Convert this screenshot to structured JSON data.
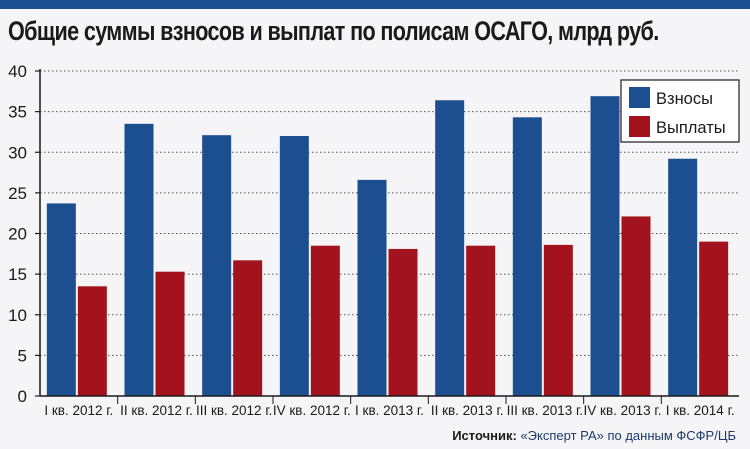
{
  "title": "Общие суммы взносов и выплат по полисам ОСАГО, млрд руб.",
  "source_label": "Источник:",
  "source_text": "«Эксперт РА» по данным ФСФР/ЦБ",
  "colors": {
    "series_1": "#1c4f8f",
    "series_2": "#a3131d",
    "accent": "#1c4f8f"
  },
  "chart_data": {
    "type": "bar",
    "title": "Общие суммы взносов и выплат по полисам ОСАГО, млрд руб.",
    "xlabel": "",
    "ylabel": "",
    "ylim": [
      0,
      40
    ],
    "yticks": [
      0,
      5,
      10,
      15,
      20,
      25,
      30,
      35,
      40
    ],
    "grid": true,
    "legend_position": "top-right",
    "categories": [
      "I кв. 2012 г.",
      "II кв. 2012 г.",
      "III кв. 2012 г.",
      "IV кв. 2012 г.",
      "I кв. 2013 г.",
      "II кв. 2013 г.",
      "III кв. 2013 г.",
      "IV кв. 2013 г.",
      "I кв. 2014 г."
    ],
    "series": [
      {
        "name": "Взносы",
        "color": "#1c4f8f",
        "values": [
          23.7,
          33.5,
          32.1,
          32.0,
          26.6,
          36.4,
          34.3,
          36.9,
          29.2
        ]
      },
      {
        "name": "Выплаты",
        "color": "#a3131d",
        "values": [
          13.5,
          15.3,
          16.7,
          18.5,
          18.1,
          18.5,
          18.6,
          22.1,
          19.0
        ]
      }
    ]
  }
}
